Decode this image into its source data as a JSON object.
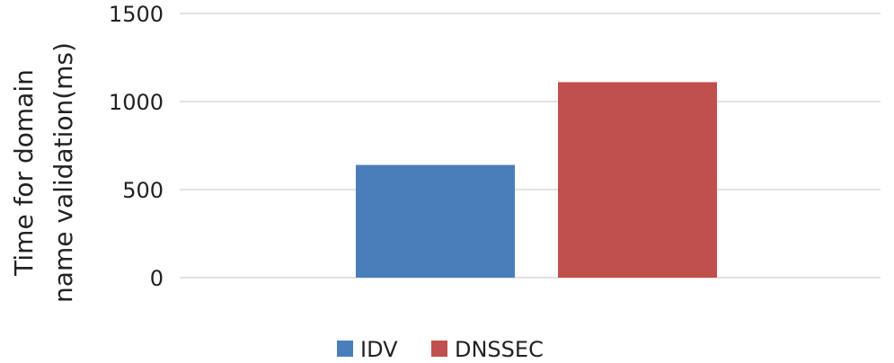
{
  "chart_data": {
    "type": "bar",
    "title": "",
    "xlabel": "",
    "ylabel": [
      "Time for domain",
      "name validation(ms)"
    ],
    "ylim": [
      0,
      1500
    ],
    "yticks": [
      0,
      500,
      1000,
      1500
    ],
    "grid": true,
    "legend_position": "bottom",
    "series": [
      {
        "name": "IDV",
        "value": 640,
        "color": "#4a7ebb"
      },
      {
        "name": "DNSSEC",
        "value": 1110,
        "color": "#c0504d"
      }
    ]
  }
}
